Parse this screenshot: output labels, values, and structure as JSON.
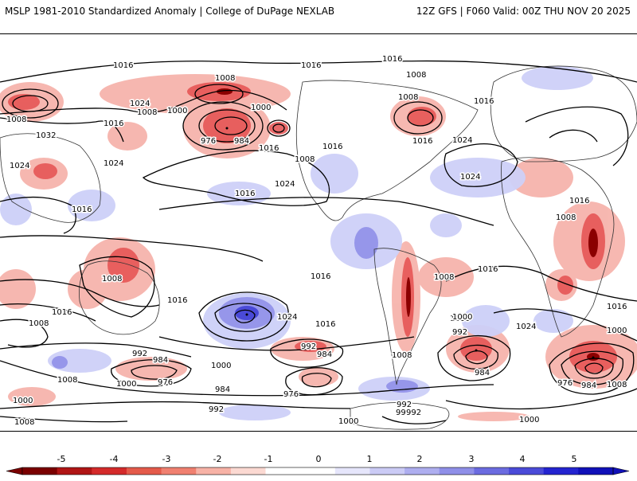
{
  "header": {
    "title": "MSLP 1981-2010 Standardized Anomaly | College of DuPage NEXLAB",
    "run_info": "12Z GFS | F060 Valid: 00Z THU NOV 20 2025"
  },
  "map": {
    "variable": "MSLP standardized anomaly",
    "isobar_labels": [
      "1016",
      "1016",
      "1008",
      "1016",
      "1008",
      "1000",
      "1000",
      "1008",
      "1016",
      "1008",
      "1008",
      "1016",
      "1016",
      "1032",
      "1016",
      "1024",
      "1024",
      "1024",
      "976",
      "984",
      "1016",
      "1024",
      "1016",
      "1016",
      "1008",
      "1024",
      "1016",
      "1008",
      "1016",
      "1024",
      "1016",
      "1008",
      "1016",
      "1008",
      "1016",
      "1008",
      "1000",
      "992",
      "984",
      "1024",
      "1016",
      "1016",
      "1024",
      "1008",
      "992",
      "984",
      "1000",
      "992",
      "1000",
      "984",
      "976",
      "1000",
      "992",
      "984",
      "1000",
      "992",
      "1000",
      "976",
      "984",
      "1008",
      "1008",
      "1000",
      "976",
      "992",
      "992",
      "1000",
      "1008"
    ],
    "colors": {
      "negative_strong": "#8b0000",
      "negative": "#e55050",
      "negative_weak": "#f6b0a8",
      "positive_weak": "#cdd0f8",
      "positive": "#8f8fe8",
      "positive_strong": "#1a1ad8",
      "contour": "#000000"
    }
  },
  "colorbar": {
    "ticks": [
      "-5",
      "-4",
      "-3",
      "-2",
      "-1",
      "0",
      "1",
      "2",
      "3",
      "4",
      "5"
    ],
    "colors": [
      "#7a0000",
      "#b01515",
      "#d42a2a",
      "#e45a4a",
      "#f08070",
      "#f7b2a6",
      "#fbd9d2",
      "#ffffff",
      "#ffffff",
      "#e6e6fb",
      "#cbcbf5",
      "#aeaeef",
      "#8f8fe8",
      "#6b6be0",
      "#4a4ad8",
      "#2424d0",
      "#1010b8"
    ]
  }
}
